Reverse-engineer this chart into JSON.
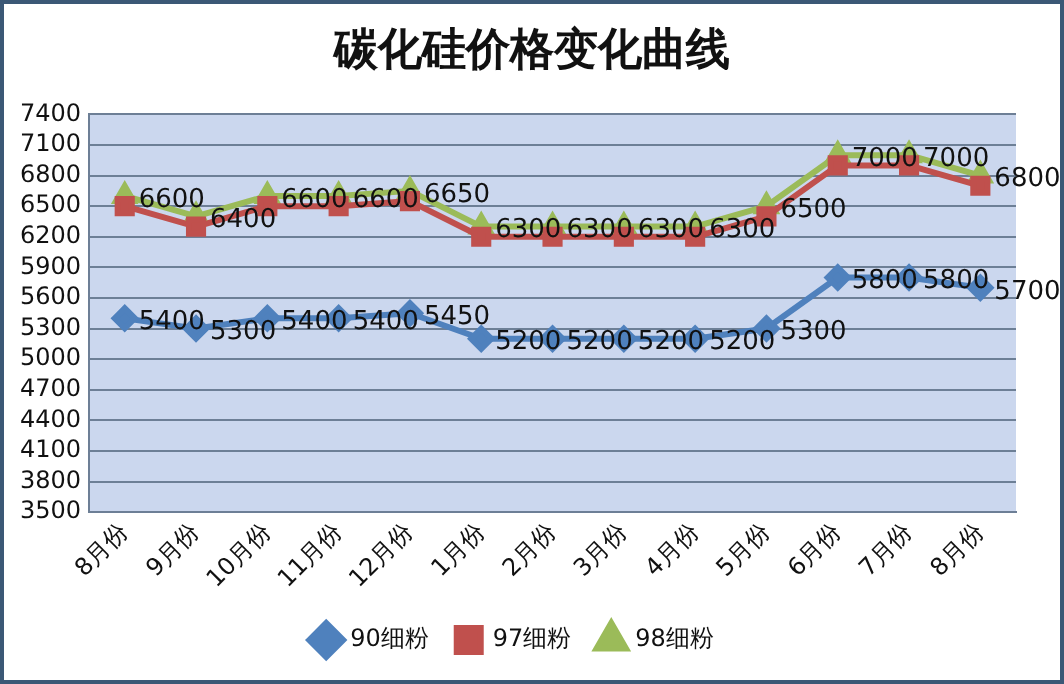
{
  "chart_data": {
    "type": "line",
    "title": "碳化硅价格变化曲线",
    "categories": [
      "8月份",
      "9月份",
      "10月份",
      "11月份",
      "12月份",
      "1月份",
      "2月份",
      "3月份",
      "4月份",
      "5月份",
      "6月份",
      "7月份",
      "8月份"
    ],
    "ylim": [
      3500,
      7400
    ],
    "yticks": [
      3500,
      3800,
      4100,
      4400,
      4700,
      5000,
      5300,
      5600,
      5900,
      6200,
      6500,
      6800,
      7100,
      7400
    ],
    "grid": "y",
    "legend": "bottom",
    "line_style": "solid",
    "series": [
      {
        "name": "90细粉",
        "color": "#4f81bd",
        "marker": "diamond",
        "values": [
          5400,
          5300,
          5400,
          5400,
          5450,
          5200,
          5200,
          5200,
          5200,
          5300,
          5800,
          5800,
          5700
        ],
        "value_labels": [
          "5400",
          "5300",
          "5400",
          "5400",
          "5450",
          "5200",
          "5200",
          "5200",
          "5200",
          "5300",
          "5800",
          "5800",
          "5700"
        ]
      },
      {
        "name": "97细粉",
        "color": "#c0504d",
        "marker": "square",
        "values": [
          6500,
          6300,
          6500,
          6500,
          6550,
          6200,
          6200,
          6200,
          6200,
          6400,
          6900,
          6900,
          6700
        ]
      },
      {
        "name": "98细粉",
        "color": "#9bbb59",
        "marker": "triangle",
        "values": [
          6600,
          6400,
          6600,
          6600,
          6650,
          6300,
          6300,
          6300,
          6300,
          6500,
          7000,
          7000,
          6800
        ],
        "value_labels": [
          "6600",
          "6400",
          "6600",
          "6600",
          "6650",
          "6300",
          "6300",
          "6300",
          "6300",
          "6500",
          "7000",
          "7000",
          "6800"
        ]
      }
    ]
  }
}
